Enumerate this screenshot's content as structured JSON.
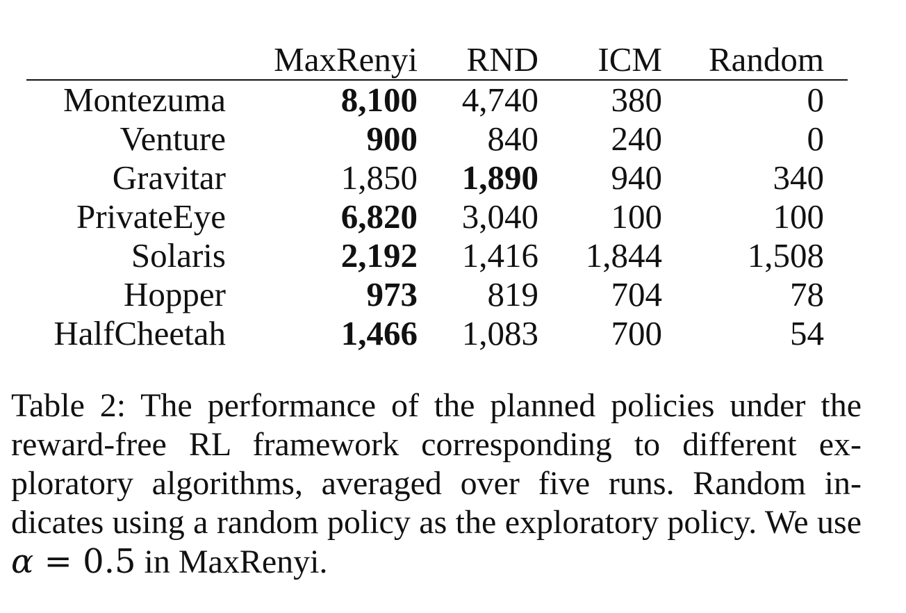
{
  "table": {
    "columns": [
      "",
      "MaxRenyi",
      "RND",
      "ICM",
      "Random"
    ],
    "rows": [
      {
        "name": "Montezuma",
        "cells": [
          "8,100",
          "4,740",
          "380",
          "0"
        ],
        "best": 0
      },
      {
        "name": "Venture",
        "cells": [
          "900",
          "840",
          "240",
          "0"
        ],
        "best": 0
      },
      {
        "name": "Gravitar",
        "cells": [
          "1,850",
          "1,890",
          "940",
          "340"
        ],
        "best": 1
      },
      {
        "name": "PrivateEye",
        "cells": [
          "6,820",
          "3,040",
          "100",
          "100"
        ],
        "best": 0
      },
      {
        "name": "Solaris",
        "cells": [
          "2,192",
          "1,416",
          "1,844",
          "1,508"
        ],
        "best": 0
      },
      {
        "name": "Hopper",
        "cells": [
          "973",
          "819",
          "704",
          "78"
        ],
        "best": 0
      },
      {
        "name": "HalfCheetah",
        "cells": [
          "1,466",
          "1,083",
          "700",
          "54"
        ],
        "best": 0
      }
    ]
  },
  "caption": {
    "label": "Table 2:",
    "text_1": "The performance of the planned policies under the reward-free RL framework corresponding to different ex­ploratory algorithms, averaged over five runs. Random in­dicates using a random policy as the exploratory policy. We use",
    "math_var": "α",
    "math_rel": " = 0.5",
    "text_2": "in MaxRenyi."
  }
}
